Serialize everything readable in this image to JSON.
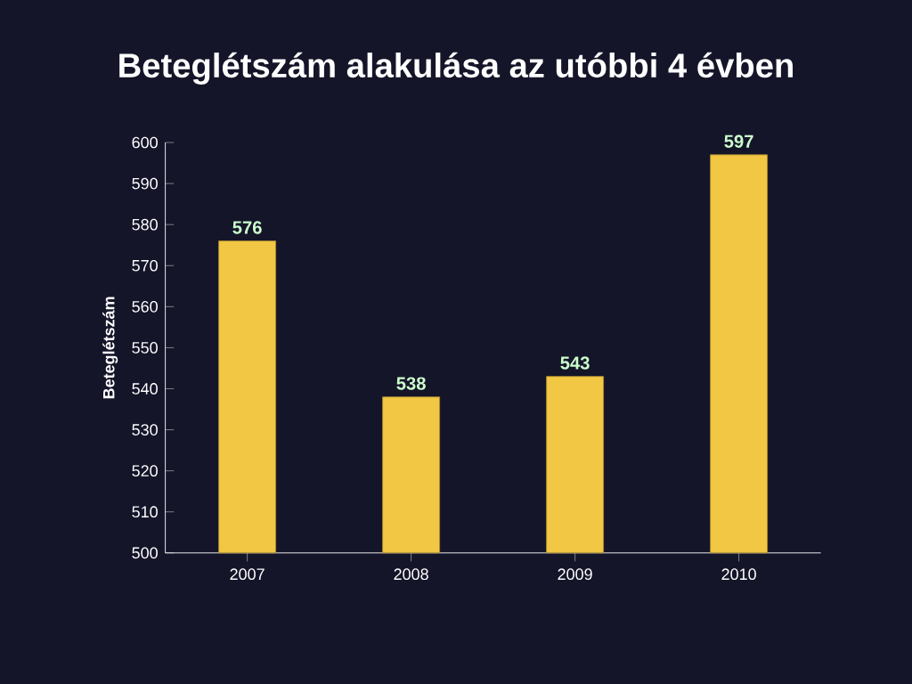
{
  "chart_data": {
    "type": "bar",
    "title": "Beteglétszám alakulása az utóbbi 4 évben",
    "ylabel": "Beteglétszám",
    "categories": [
      "2007",
      "2008",
      "2009",
      "2010"
    ],
    "values": [
      576,
      538,
      543,
      597
    ],
    "color": "#f2c744",
    "ylim": [
      500,
      600
    ],
    "yticks": [
      500,
      510,
      520,
      530,
      540,
      550,
      560,
      570,
      580,
      590,
      600
    ],
    "data_labels": true,
    "grid": false
  }
}
